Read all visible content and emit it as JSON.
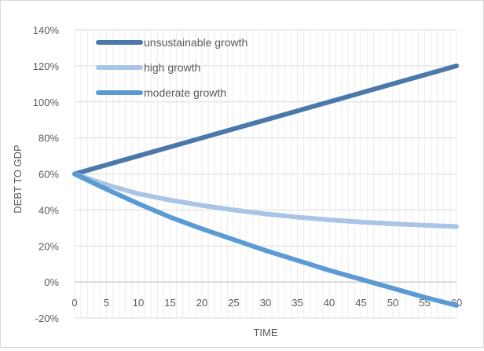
{
  "chart_data": {
    "type": "line",
    "title": "",
    "xlabel": "TIME",
    "ylabel": "DEBT TO GDP",
    "xlim": [
      0,
      60
    ],
    "ylim": [
      -20,
      140
    ],
    "x_ticks": [
      0,
      5,
      10,
      15,
      20,
      25,
      30,
      35,
      40,
      45,
      50,
      55,
      60
    ],
    "y_ticks": [
      -20,
      0,
      20,
      40,
      60,
      80,
      100,
      120,
      140
    ],
    "y_tick_labels": [
      "-20%",
      "0%",
      "20%",
      "40%",
      "60%",
      "80%",
      "100%",
      "120%",
      "140%"
    ],
    "grid": true,
    "legend_position": "top-left",
    "series": [
      {
        "name": "unsustainable growth",
        "color": "#4a78aa",
        "x": [
          0,
          5,
          10,
          15,
          20,
          25,
          30,
          35,
          40,
          45,
          50,
          55,
          60
        ],
        "values": [
          60,
          65,
          70,
          75,
          80,
          85,
          90,
          95,
          100,
          105,
          110,
          115,
          120
        ]
      },
      {
        "name": "high growth",
        "color": "#a9c4e5",
        "x": [
          0,
          5,
          10,
          15,
          20,
          25,
          30,
          35,
          40,
          45,
          50,
          55,
          60
        ],
        "values": [
          60,
          54,
          49,
          45.5,
          42.5,
          40,
          37.8,
          36,
          34.5,
          33.3,
          32.3,
          31.5,
          30.8
        ]
      },
      {
        "name": "moderate growth",
        "color": "#5b9bd5",
        "x": [
          0,
          5,
          10,
          15,
          20,
          25,
          30,
          35,
          40,
          45,
          50,
          55,
          60
        ],
        "values": [
          60,
          51.5,
          43.5,
          36,
          29.5,
          23.5,
          17.5,
          12,
          6.5,
          1.5,
          -3.5,
          -8.5,
          -13
        ]
      }
    ]
  }
}
